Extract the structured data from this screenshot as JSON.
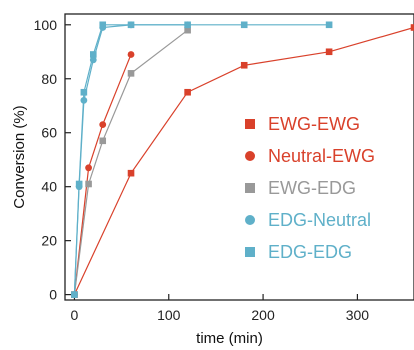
{
  "chart_data": {
    "type": "scatter",
    "xlabel": "time (min)",
    "ylabel": "Conversion (%)",
    "xlim": [
      -10,
      360
    ],
    "ylim": [
      -2,
      104
    ],
    "x_ticks": [
      0,
      100,
      200,
      300
    ],
    "y_ticks": [
      0,
      20,
      40,
      60,
      80,
      100
    ],
    "grid": false,
    "legend_position": "right-center",
    "series": [
      {
        "name": "EWG-EWG",
        "marker": "square",
        "color": "#d9412b",
        "x": [
          0,
          60,
          120,
          180,
          270,
          360
        ],
        "y": [
          0,
          45,
          75,
          85,
          90,
          99
        ]
      },
      {
        "name": "Neutral-EWG",
        "marker": "circle",
        "color": "#d9412b",
        "x": [
          0,
          15,
          30,
          60
        ],
        "y": [
          0,
          47,
          63,
          89
        ]
      },
      {
        "name": "EWG-EDG",
        "marker": "square",
        "color": "#999999",
        "x": [
          0,
          15,
          30,
          60,
          120
        ],
        "y": [
          0,
          41,
          57,
          82,
          98
        ]
      },
      {
        "name": "EDG-Neutral",
        "marker": "circle",
        "color": "#5fb0c9",
        "x": [
          0,
          5,
          10,
          20,
          30,
          60,
          120
        ],
        "y": [
          0,
          40,
          72,
          87,
          99,
          100,
          100
        ]
      },
      {
        "name": "EDG-EDG",
        "marker": "square",
        "color": "#5fb0c9",
        "x": [
          0,
          5,
          10,
          20,
          30,
          60,
          120,
          180,
          270
        ],
        "y": [
          0,
          41,
          75,
          89,
          100,
          100,
          100,
          100,
          100
        ]
      }
    ]
  }
}
